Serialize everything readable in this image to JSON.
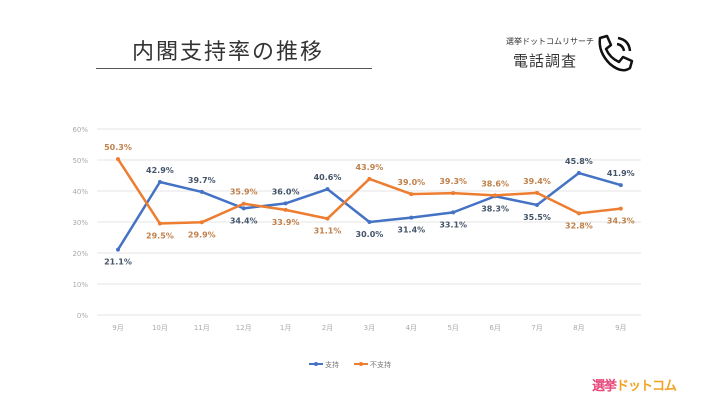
{
  "header": {
    "title": "内閣支持率の推移",
    "brand_sub": "選挙ドットコムリサーチ",
    "brand_main": "電話調査",
    "logo": "選挙ドットコム"
  },
  "chart_data": {
    "type": "line",
    "title": "内閣支持率の推移",
    "categories": [
      "9月",
      "10月",
      "11月",
      "12月",
      "1月",
      "2月",
      "3月",
      "4月",
      "5月",
      "6月",
      "7月",
      "8月",
      "9月"
    ],
    "ylim": [
      0,
      60
    ],
    "yticks": [
      0,
      10,
      20,
      30,
      40,
      50,
      60
    ],
    "ytick_labels": [
      "0%",
      "10%",
      "20%",
      "30%",
      "40%",
      "50%",
      "60%"
    ],
    "grid": true,
    "legend": "bottom",
    "series": [
      {
        "name": "支持",
        "color": "#4472c4",
        "values": [
          21.1,
          42.9,
          39.7,
          34.4,
          36.0,
          40.6,
          30.0,
          31.4,
          33.1,
          38.3,
          35.5,
          45.8,
          41.9
        ],
        "labels": [
          "21.1%",
          "42.9%",
          "39.7%",
          "34.4%",
          "36.0%",
          "40.6%",
          "30.0%",
          "31.4%",
          "33.1%",
          "38.3%",
          "35.5%",
          "45.8%",
          "41.9%"
        ]
      },
      {
        "name": "不支持",
        "color": "#ed7d31",
        "values": [
          50.3,
          29.5,
          29.9,
          35.9,
          33.9,
          31.1,
          43.9,
          39.0,
          39.3,
          38.6,
          39.4,
          32.8,
          34.3
        ],
        "labels": [
          "50.3%",
          "29.5%",
          "29.9%",
          "35.9%",
          "33.9%",
          "31.1%",
          "43.9%",
          "39.0%",
          "39.3%",
          "38.6%",
          "39.4%",
          "32.8%",
          "34.3%"
        ]
      }
    ]
  }
}
